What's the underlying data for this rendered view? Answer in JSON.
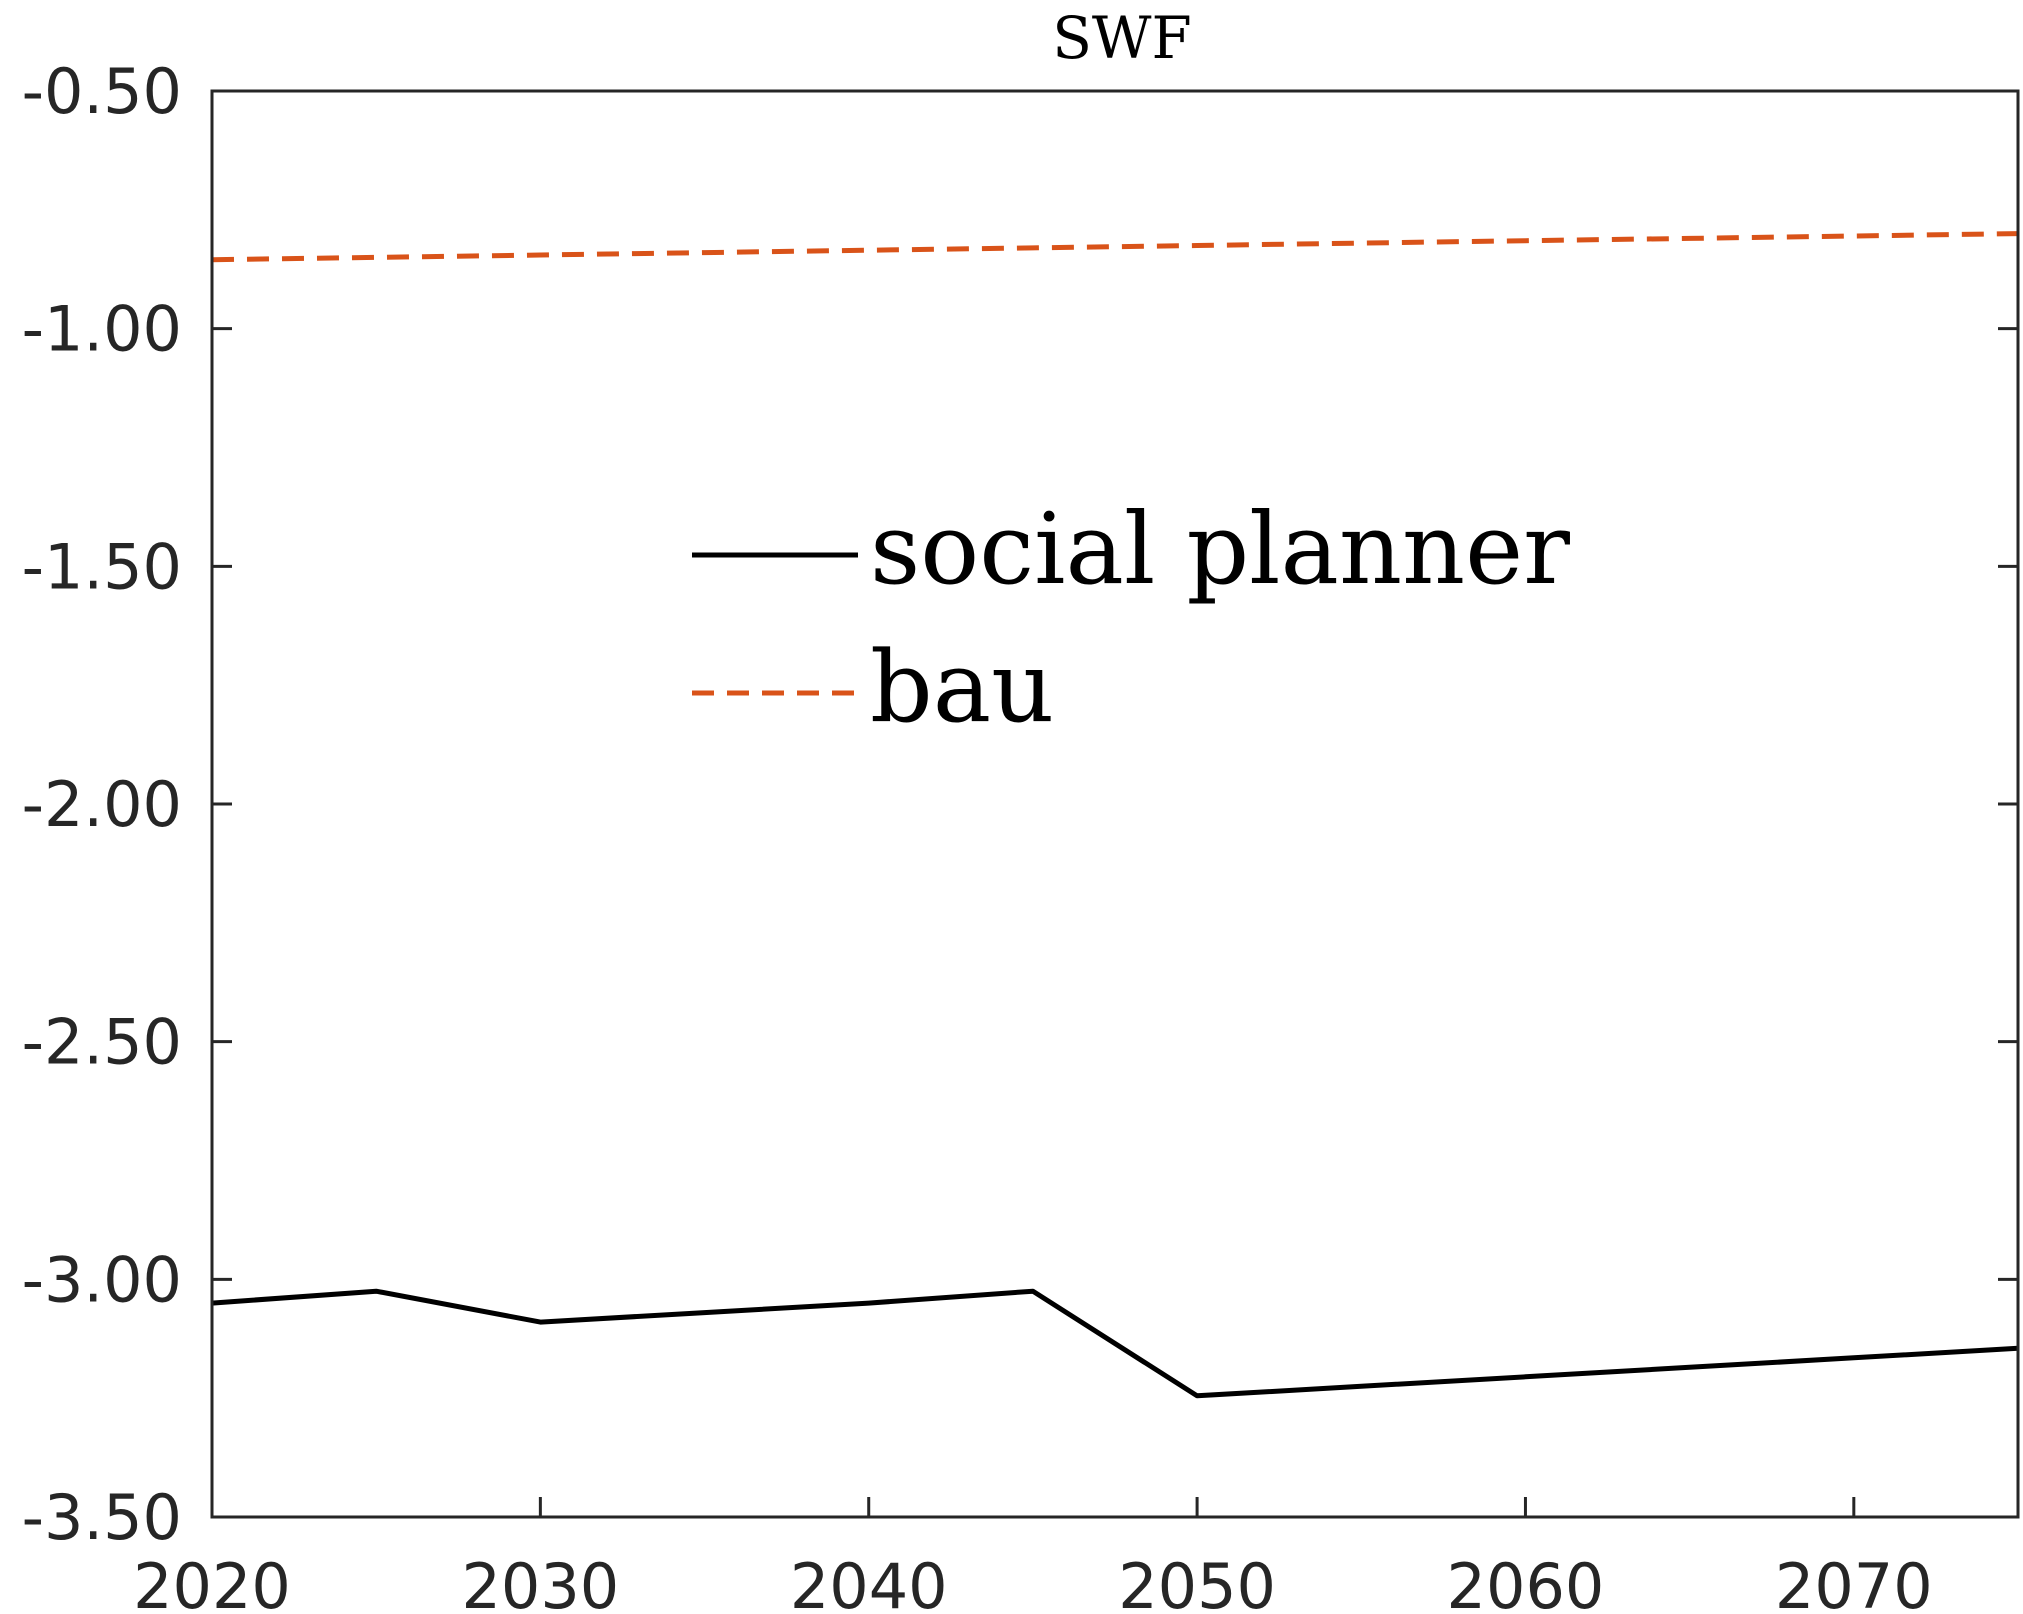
{
  "chart_data": {
    "type": "line",
    "title": "SWF",
    "xlabel": "",
    "ylabel": "",
    "xlim": [
      2020,
      2075
    ],
    "ylim": [
      -3.5,
      -0.5
    ],
    "xticks": [
      2020,
      2030,
      2040,
      2050,
      2060,
      2070
    ],
    "xtick_labels": [
      "2020",
      "2030",
      "2040",
      "2050",
      "2060",
      "2070"
    ],
    "yticks": [
      -0.5,
      -1.0,
      -1.5,
      -2.0,
      -2.5,
      -3.0,
      -3.5
    ],
    "ytick_labels": [
      "-0.50",
      "-1.00",
      "-1.50",
      "-2.00",
      "-2.50",
      "-3.00",
      "-3.50"
    ],
    "grid": false,
    "legend_position": "center",
    "series": [
      {
        "name": "social planner",
        "color": "#000000",
        "style": "solid",
        "x": [
          2020,
          2025,
          2030,
          2035,
          2040,
          2045,
          2050,
          2055,
          2060,
          2065,
          2070,
          2075
        ],
        "y": [
          -3.05,
          -3.025,
          -3.09,
          -3.07,
          -3.05,
          -3.025,
          -3.245,
          -3.225,
          -3.205,
          -3.185,
          -3.165,
          -3.145
        ]
      },
      {
        "name": "bau",
        "color": "#D95319",
        "style": "dashed",
        "x": [
          2020,
          2025,
          2030,
          2035,
          2040,
          2045,
          2050,
          2055,
          2060,
          2065,
          2070,
          2075
        ],
        "y": [
          -0.855,
          -0.85,
          -0.845,
          -0.84,
          -0.835,
          -0.83,
          -0.825,
          -0.82,
          -0.815,
          -0.81,
          -0.805,
          -0.8
        ]
      }
    ]
  }
}
